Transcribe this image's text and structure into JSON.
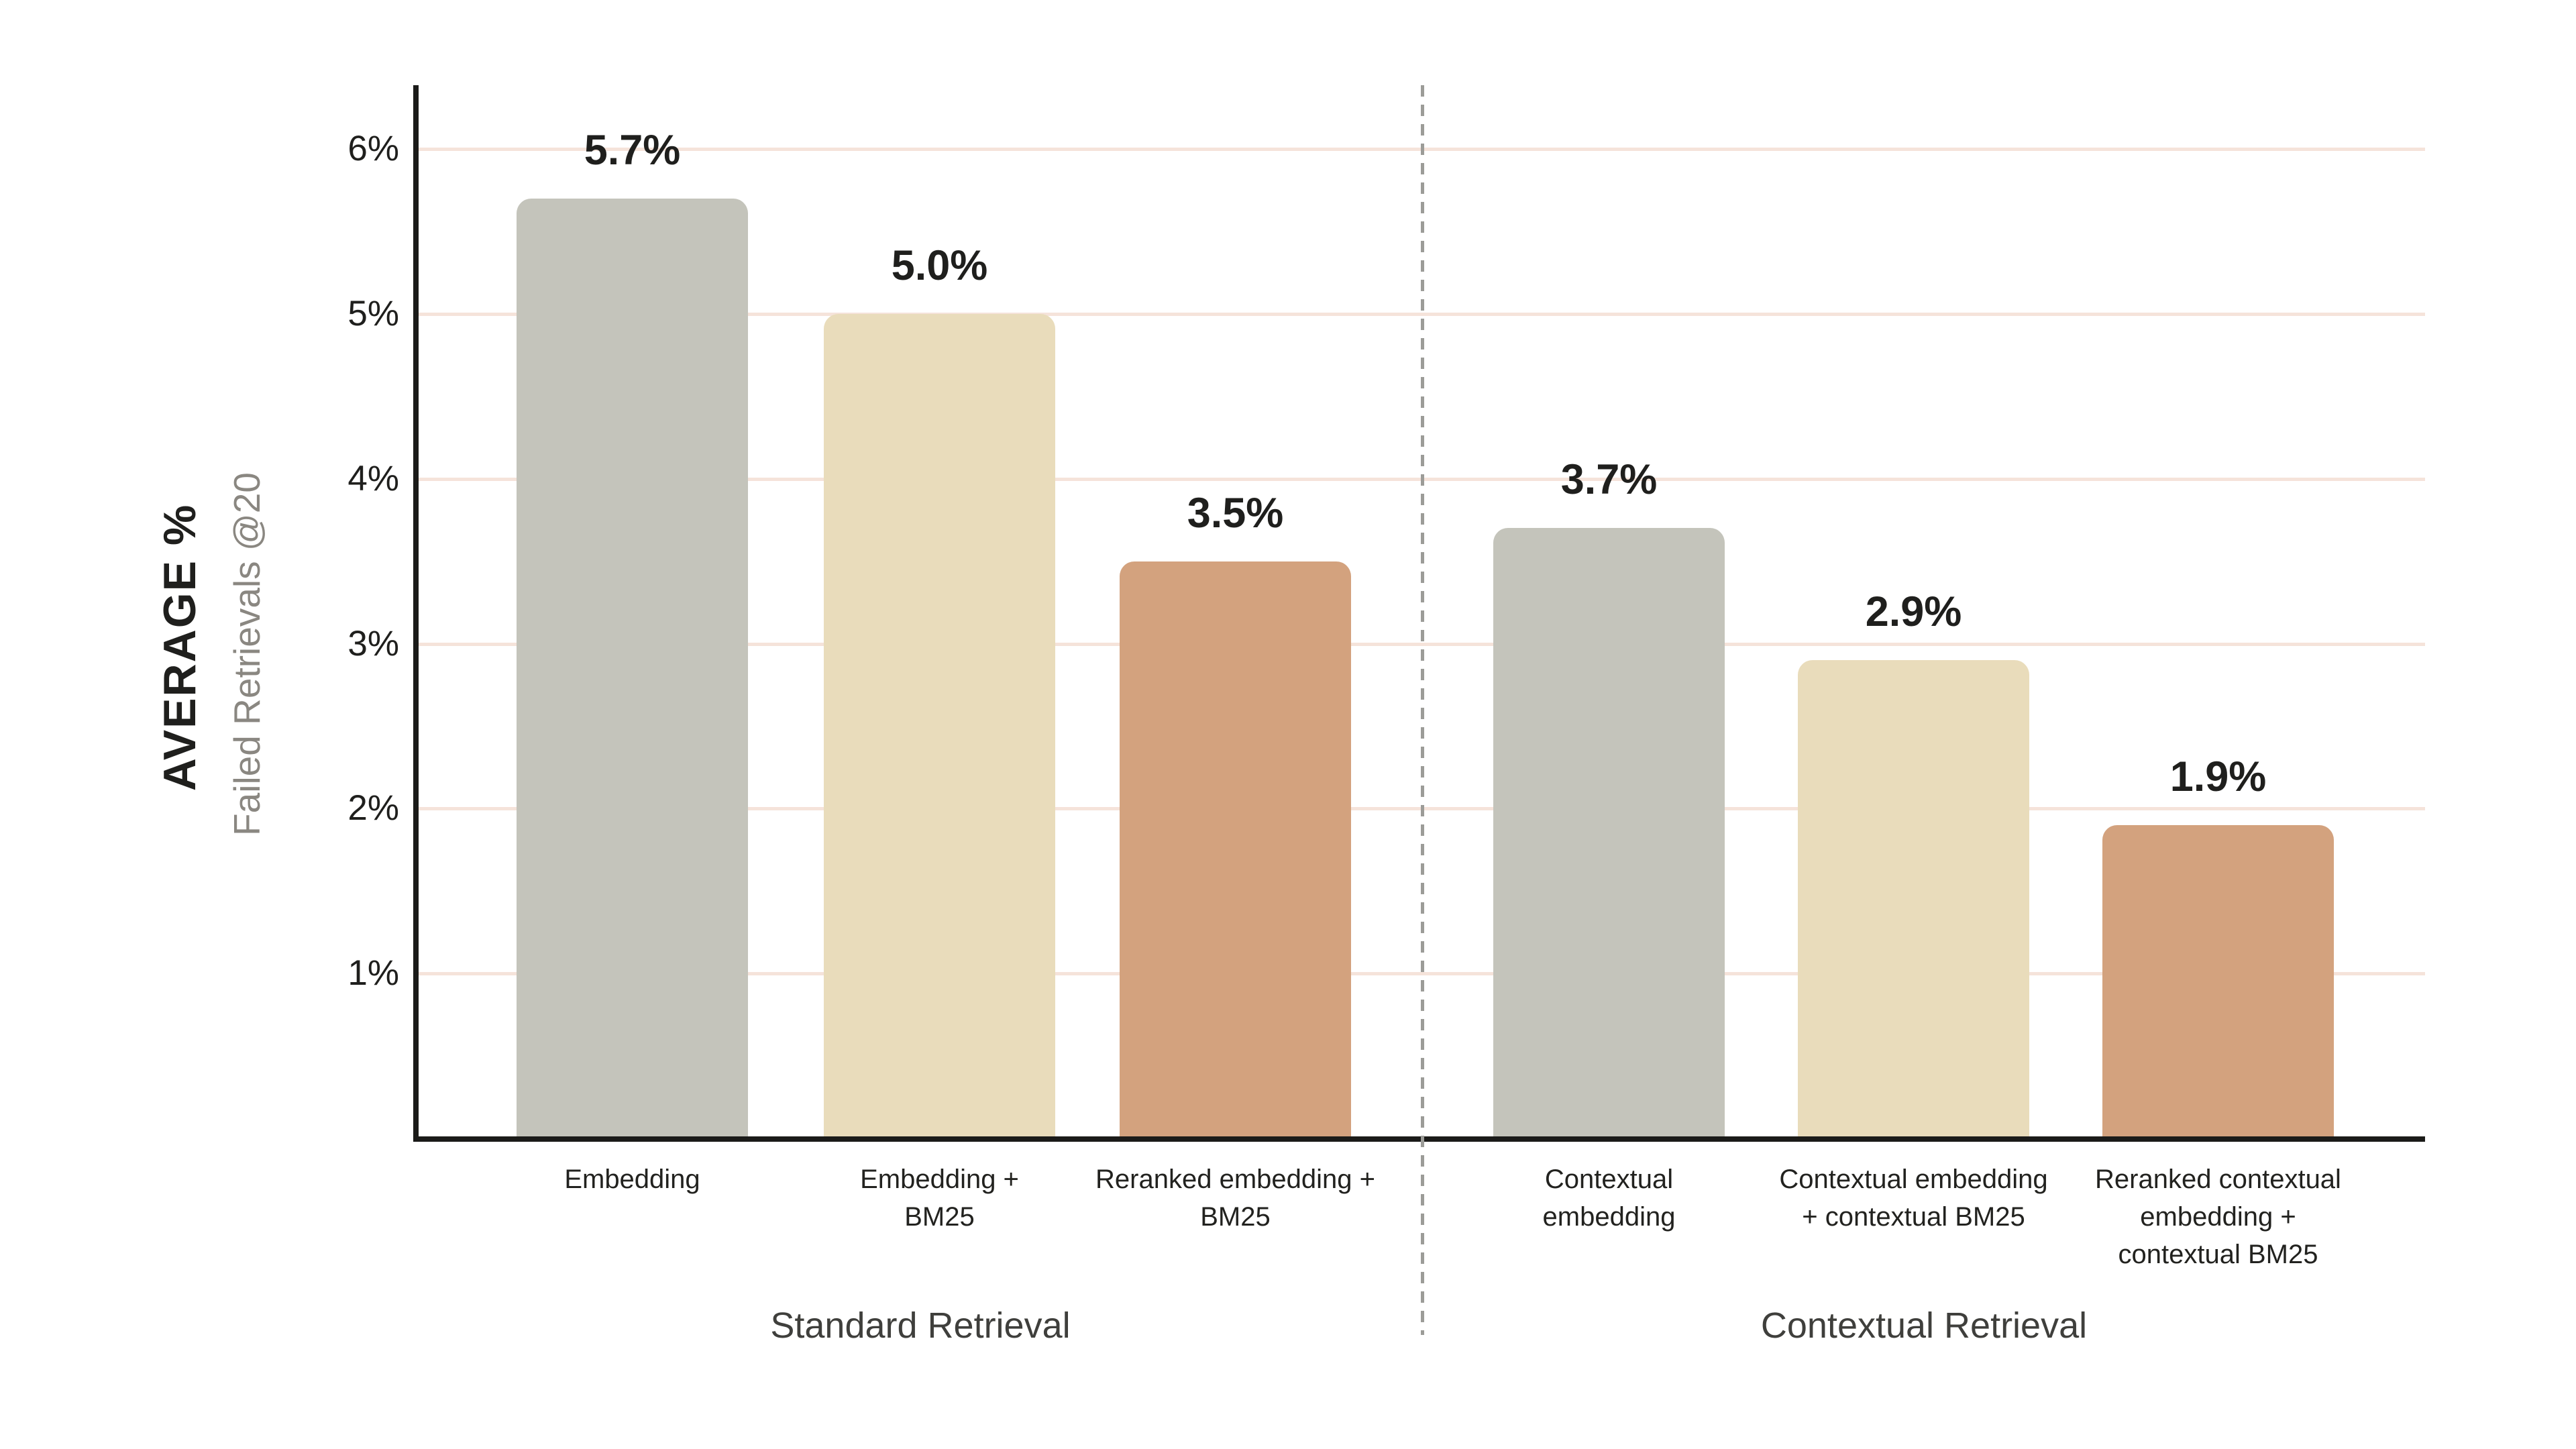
{
  "chart_data": {
    "type": "bar",
    "ylabel_primary": "AVERAGE %",
    "ylabel_secondary": "Failed Retrievals @20",
    "ylim": [
      0,
      6.39
    ],
    "grid": true,
    "y_ticks": [
      {
        "value": 6,
        "label": "6%"
      },
      {
        "value": 5,
        "label": "5%"
      },
      {
        "value": 4,
        "label": "4%"
      },
      {
        "value": 3,
        "label": "3%"
      },
      {
        "value": 2,
        "label": "2%"
      },
      {
        "value": 1,
        "label": "1%"
      }
    ],
    "categories": [
      "Embedding",
      "Embedding +\nBM25",
      "Reranked embedding +\nBM25",
      "Contextual\nembedding",
      "Contextual embedding\n+ contextual BM25",
      "Reranked contextual\nembedding +\ncontextual BM25"
    ],
    "values": [
      5.7,
      5.0,
      3.5,
      3.7,
      2.9,
      1.9
    ],
    "data_labels": [
      "5.7%",
      "5.0%",
      "3.5%",
      "3.7%",
      "2.9%",
      "1.9%"
    ],
    "bar_colors": [
      "#c4c4bb",
      "#e9dcbb",
      "#d3a27e",
      "#c4c4bb",
      "#e9dcbb",
      "#d3a27e"
    ],
    "groups": [
      {
        "label": "Standard Retrieval",
        "bar_indexes": [
          0,
          1,
          2
        ]
      },
      {
        "label": "Contextual Retrieval",
        "bar_indexes": [
          3,
          4,
          5
        ]
      }
    ],
    "divider_between_groups": true
  },
  "colors": {
    "background": "#ffffff",
    "axis": "#1b1b19",
    "gridline": "#f5e3da",
    "divider": "#9c9c98",
    "bar_gray": "#c4c4bb",
    "bar_cream": "#e9dcbb",
    "bar_terracotta": "#d3a27e",
    "value_text": "#1f1f1d",
    "group_text": "#3f3f3c",
    "secondary_text": "#8a8781"
  }
}
